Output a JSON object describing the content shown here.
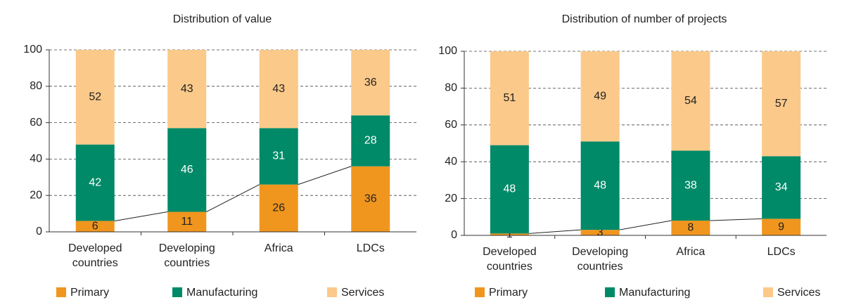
{
  "chart_data": [
    {
      "type": "stacked_bar",
      "title": "Distribution of value",
      "categories": [
        "Developed countries",
        "Developing countries",
        "Africa",
        "LDCs"
      ],
      "series": [
        {
          "name": "Primary",
          "color": "#f0961e",
          "label_color": "#222222",
          "values": [
            6,
            11,
            26,
            36
          ]
        },
        {
          "name": "Manufacturing",
          "color": "#008a68",
          "label_color": "#ffffff",
          "values": [
            42,
            46,
            31,
            28
          ]
        },
        {
          "name": "Services",
          "color": "#fbc98a",
          "label_color": "#222222",
          "values": [
            52,
            43,
            43,
            36
          ]
        }
      ],
      "ylim": [
        0,
        100
      ],
      "yticks": [
        0,
        20,
        40,
        60,
        80,
        100
      ],
      "grid": true,
      "legend": "bottom"
    },
    {
      "type": "stacked_bar",
      "title": "Distribution of number of projects",
      "categories": [
        "Developed countries",
        "Developing countries",
        "Africa",
        "LDCs"
      ],
      "series": [
        {
          "name": "Primary",
          "color": "#f0961e",
          "label_color": "#222222",
          "values": [
            1,
            3,
            8,
            9
          ]
        },
        {
          "name": "Manufacturing",
          "color": "#008a68",
          "label_color": "#ffffff",
          "values": [
            48,
            48,
            38,
            34
          ]
        },
        {
          "name": "Services",
          "color": "#fbc98a",
          "label_color": "#222222",
          "values": [
            51,
            49,
            54,
            57
          ]
        }
      ],
      "ylim": [
        0,
        100
      ],
      "yticks": [
        0,
        20,
        40,
        60,
        80,
        100
      ],
      "grid": true,
      "legend": "bottom"
    }
  ]
}
